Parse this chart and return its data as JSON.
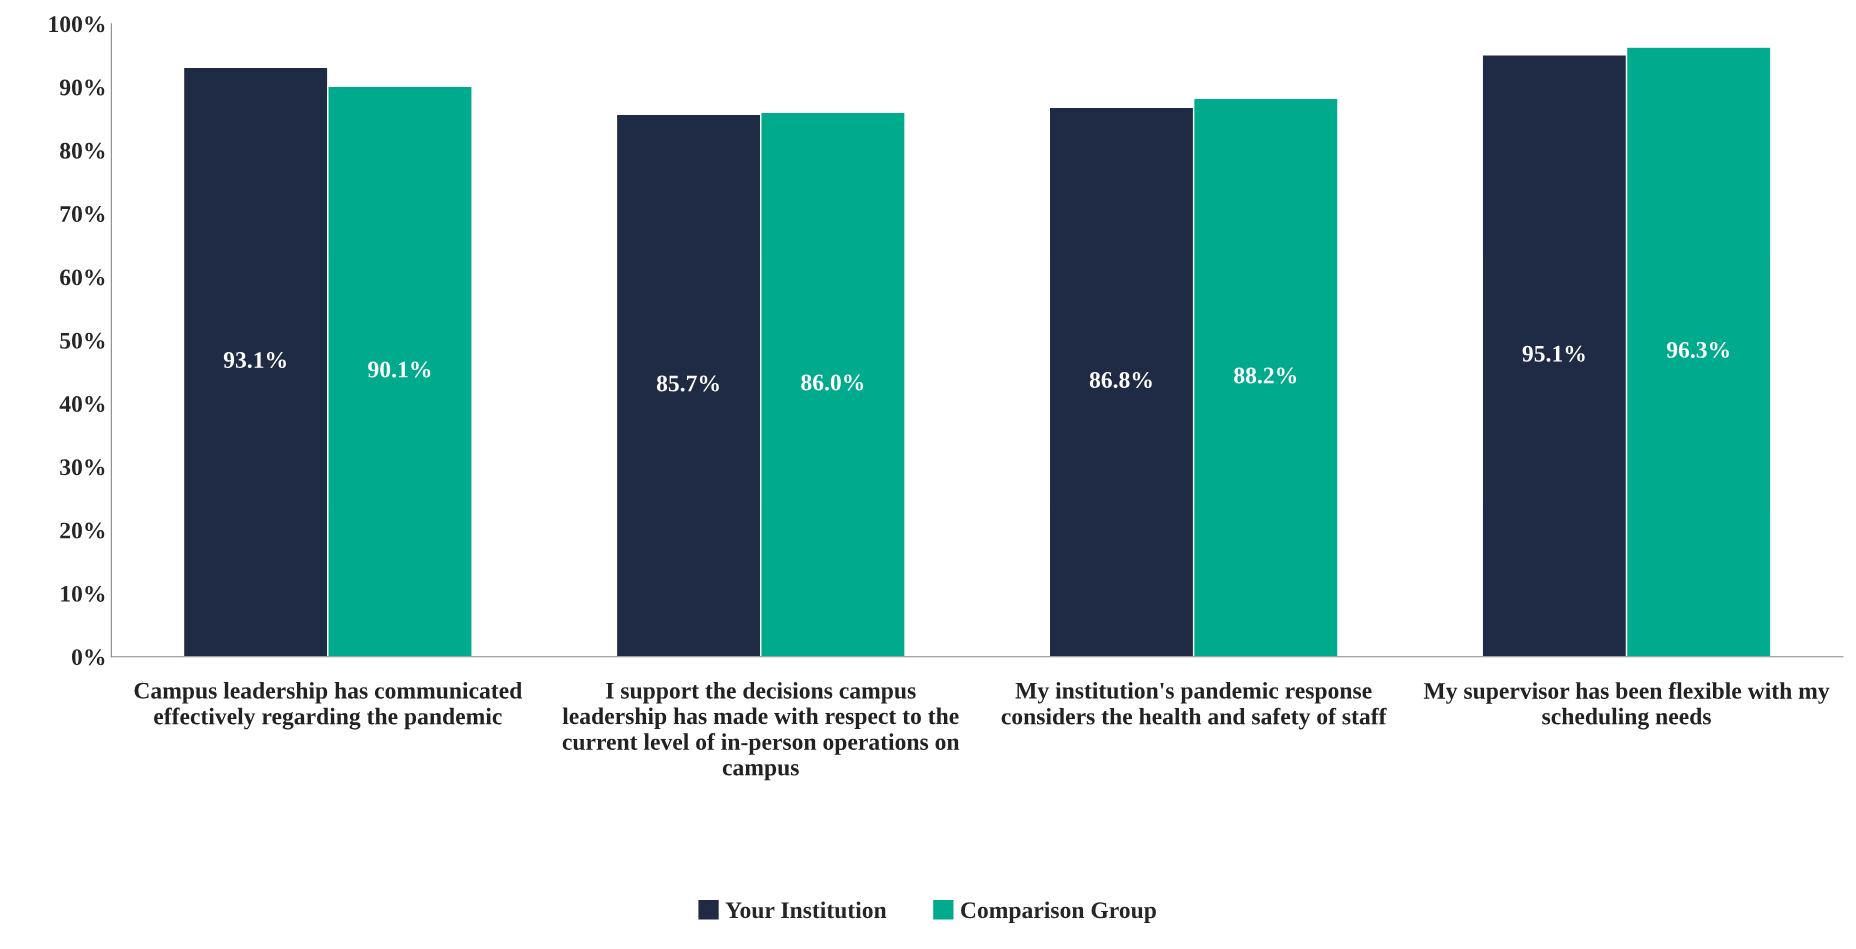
{
  "chart_data": {
    "type": "bar",
    "categories": [
      "Campus leadership has communicated effectively regarding the pandemic",
      "I support the decisions campus leadership has made with respect to the current level of in-person operations on campus",
      "My institution's pandemic response considers the health and safety of staff",
      "My supervisor has been flexible with my scheduling needs"
    ],
    "series": [
      {
        "name": "Your Institution",
        "color": "#1f2a44",
        "values": [
          93.1,
          85.7,
          86.8,
          95.1
        ],
        "value_labels": [
          "93.1%",
          "85.7%",
          "86.8%",
          "95.1%"
        ]
      },
      {
        "name": "Comparison Group",
        "color": "#00aa8d",
        "values": [
          90.1,
          86.0,
          88.2,
          96.3
        ],
        "value_labels": [
          "90.1%",
          "86.0%",
          "88.2%",
          "96.3%"
        ]
      }
    ],
    "ylim": [
      0,
      100
    ],
    "yticks": [
      {
        "value": 0,
        "label": "0%"
      },
      {
        "value": 10,
        "label": "10%"
      },
      {
        "value": 20,
        "label": "20%"
      },
      {
        "value": 30,
        "label": "30%"
      },
      {
        "value": 40,
        "label": "40%"
      },
      {
        "value": 50,
        "label": "50%"
      },
      {
        "value": 60,
        "label": "60%"
      },
      {
        "value": 70,
        "label": "70%"
      },
      {
        "value": 80,
        "label": "80%"
      },
      {
        "value": 90,
        "label": "90%"
      },
      {
        "value": 100,
        "label": "100%"
      }
    ],
    "grid": false,
    "legend": "bottom"
  }
}
